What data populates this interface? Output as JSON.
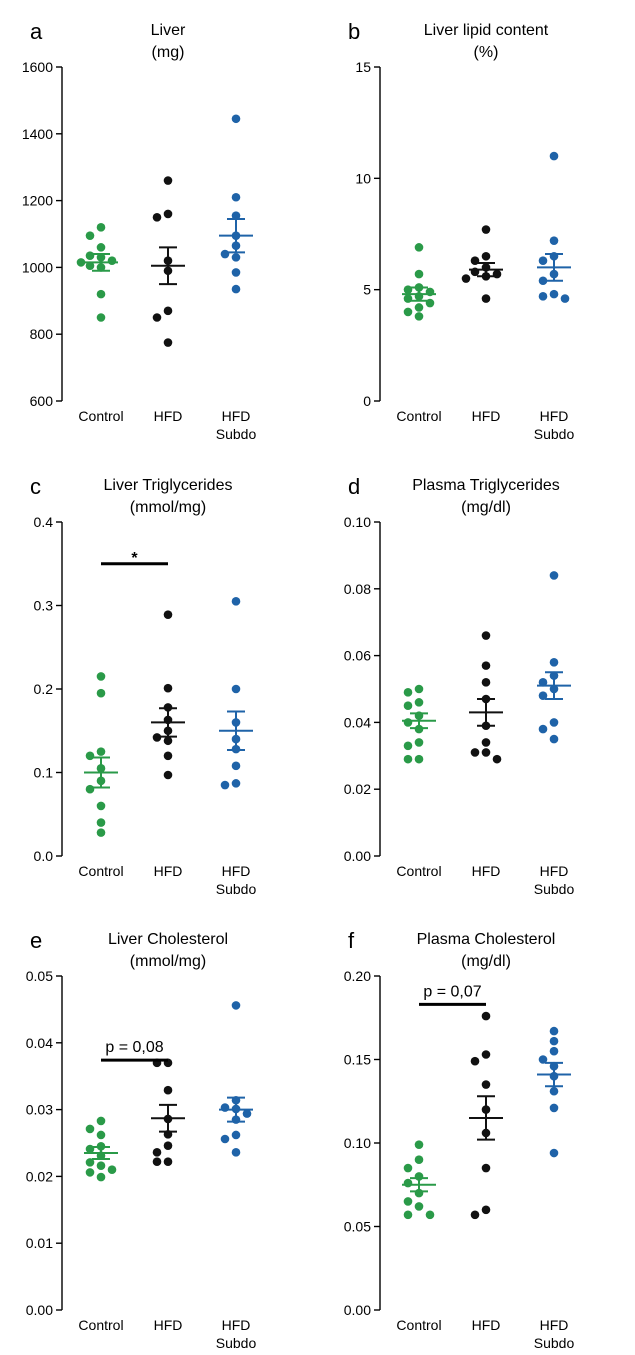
{
  "colors": {
    "Control": "#2a9a48",
    "HFD": "#111111",
    "HFD Subdo": "#1f63a8"
  },
  "chart_data": [
    {
      "panel": "a",
      "type": "scatter",
      "title": [
        "Liver",
        "(mg)"
      ],
      "categories": [
        "Control",
        "HFD",
        "HFD Subdo"
      ],
      "yticks": [
        "600",
        "800",
        "1000",
        "1200",
        "1400",
        "1600"
      ],
      "ylim": [
        600,
        1600
      ],
      "series": [
        {
          "values": [
            1120,
            1095,
            1060,
            1035,
            1030,
            1020,
            1015,
            1005,
            1000,
            920,
            850
          ],
          "mean": 1015,
          "sem": 25
        },
        {
          "values": [
            1260,
            1160,
            1150,
            1020,
            990,
            870,
            850,
            775
          ],
          "mean": 1005,
          "sem": 55
        },
        {
          "values": [
            1445,
            1210,
            1155,
            1095,
            1065,
            1040,
            1030,
            985,
            935
          ],
          "mean": 1095,
          "sem": 50
        }
      ],
      "annotation": null
    },
    {
      "panel": "b",
      "type": "scatter",
      "title": [
        "Liver lipid content",
        "(%)"
      ],
      "categories": [
        "Control",
        "HFD",
        "HFD Subdo"
      ],
      "yticks": [
        "0",
        "5",
        "10",
        "15"
      ],
      "ylim": [
        0,
        15
      ],
      "series": [
        {
          "values": [
            6.9,
            5.7,
            5.1,
            5.0,
            4.9,
            4.7,
            4.6,
            4.4,
            4.2,
            4.0,
            3.8
          ],
          "mean": 4.8,
          "sem": 0.3
        },
        {
          "values": [
            7.7,
            6.5,
            6.3,
            6.0,
            5.8,
            5.7,
            5.6,
            5.5,
            4.6
          ],
          "mean": 5.9,
          "sem": 0.3
        },
        {
          "values": [
            11.0,
            7.2,
            6.5,
            6.3,
            5.7,
            5.4,
            4.8,
            4.7,
            4.6
          ],
          "mean": 6.0,
          "sem": 0.6
        }
      ],
      "annotation": null
    },
    {
      "panel": "c",
      "type": "scatter",
      "title": [
        "Liver Triglycerides",
        "(mmol/mg)"
      ],
      "categories": [
        "Control",
        "HFD",
        "HFD Subdo"
      ],
      "yticks": [
        "0.0",
        "0.1",
        "0.2",
        "0.3",
        "0.4"
      ],
      "ylim": [
        0,
        0.4
      ],
      "series": [
        {
          "values": [
            0.215,
            0.195,
            0.125,
            0.12,
            0.105,
            0.09,
            0.08,
            0.06,
            0.04,
            0.028
          ],
          "mean": 0.1,
          "sem": 0.018
        },
        {
          "values": [
            0.289,
            0.201,
            0.178,
            0.163,
            0.15,
            0.142,
            0.138,
            0.12,
            0.097
          ],
          "mean": 0.16,
          "sem": 0.017
        },
        {
          "values": [
            0.305,
            0.2,
            0.16,
            0.14,
            0.128,
            0.108,
            0.087,
            0.085
          ],
          "mean": 0.15,
          "sem": 0.023
        }
      ],
      "annotation": {
        "from": 0,
        "to": 1,
        "y": 0.35,
        "text": "*"
      }
    },
    {
      "panel": "d",
      "type": "scatter",
      "title": [
        "Plasma Triglycerides",
        "(mg/dl)"
      ],
      "categories": [
        "Control",
        "HFD",
        "HFD Subdo"
      ],
      "yticks": [
        "0.00",
        "0.02",
        "0.04",
        "0.06",
        "0.08",
        "0.10"
      ],
      "ylim": [
        0,
        0.1
      ],
      "series": [
        {
          "values": [
            0.05,
            0.049,
            0.046,
            0.045,
            0.042,
            0.04,
            0.038,
            0.034,
            0.033,
            0.029,
            0.029
          ],
          "mean": 0.0405,
          "sem": 0.0022
        },
        {
          "values": [
            0.066,
            0.057,
            0.052,
            0.047,
            0.039,
            0.034,
            0.031,
            0.031,
            0.029
          ],
          "mean": 0.043,
          "sem": 0.004
        },
        {
          "values": [
            0.084,
            0.058,
            0.054,
            0.052,
            0.05,
            0.048,
            0.04,
            0.038,
            0.035
          ],
          "mean": 0.051,
          "sem": 0.004
        }
      ],
      "annotation": null
    },
    {
      "panel": "e",
      "type": "scatter",
      "title": [
        "Liver Cholesterol",
        "(mmol/mg)"
      ],
      "categories": [
        "Control",
        "HFD",
        "HFD Subdo"
      ],
      "yticks": [
        "0.00",
        "0.01",
        "0.02",
        "0.03",
        "0.04",
        "0.05"
      ],
      "ylim": [
        0,
        0.05
      ],
      "series": [
        {
          "values": [
            0.0283,
            0.0271,
            0.0262,
            0.0245,
            0.0241,
            0.0231,
            0.0221,
            0.0216,
            0.021,
            0.0206,
            0.0199
          ],
          "mean": 0.0235,
          "sem": 0.0009
        },
        {
          "values": [
            0.037,
            0.037,
            0.0329,
            0.0286,
            0.0263,
            0.0246,
            0.0236,
            0.0222,
            0.0222
          ],
          "mean": 0.0287,
          "sem": 0.002
        },
        {
          "values": [
            0.0456,
            0.0314,
            0.0303,
            0.0301,
            0.0294,
            0.0285,
            0.0262,
            0.0256,
            0.0236
          ],
          "mean": 0.03,
          "sem": 0.0018
        }
      ],
      "annotation": {
        "from": 0,
        "to": 1,
        "y": 0.0374,
        "text": "p = 0,08"
      }
    },
    {
      "panel": "f",
      "type": "scatter",
      "title": [
        "Plasma Cholesterol",
        "(mg/dl)"
      ],
      "categories": [
        "Control",
        "HFD",
        "HFD Subdo"
      ],
      "yticks": [
        "0.00",
        "0.05",
        "0.10",
        "0.15",
        "0.20"
      ],
      "ylim": [
        0,
        0.2
      ],
      "series": [
        {
          "values": [
            0.099,
            0.09,
            0.085,
            0.08,
            0.076,
            0.07,
            0.065,
            0.062,
            0.057,
            0.057
          ],
          "mean": 0.075,
          "sem": 0.004
        },
        {
          "values": [
            0.176,
            0.153,
            0.149,
            0.135,
            0.12,
            0.106,
            0.085,
            0.06,
            0.057
          ],
          "mean": 0.115,
          "sem": 0.013
        },
        {
          "values": [
            0.167,
            0.161,
            0.155,
            0.15,
            0.146,
            0.14,
            0.131,
            0.121,
            0.094
          ],
          "mean": 0.141,
          "sem": 0.007
        }
      ],
      "annotation": {
        "from": 0,
        "to": 1,
        "y": 0.183,
        "text": "p = 0,07"
      }
    }
  ]
}
